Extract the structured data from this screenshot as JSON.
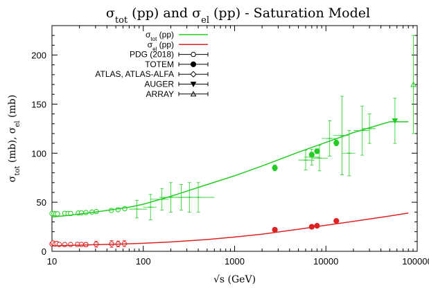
{
  "chart_data": {
    "type": "scatter",
    "title": {
      "parts": [
        {
          "text": "σ",
          "sub": false
        },
        {
          "text": "tot",
          "sub": true
        },
        {
          "text": " (pp) and ",
          "sub": false
        },
        {
          "text": "σ",
          "sub": false
        },
        {
          "text": "el",
          "sub": true
        },
        {
          "text": " (pp) - Saturation Model",
          "sub": false
        }
      ]
    },
    "xlabel": "√s (GeV)",
    "ylabel": {
      "parts": [
        {
          "text": "σ",
          "sub": false
        },
        {
          "text": "tot",
          "sub": true
        },
        {
          "text": " (mb), ",
          "sub": false
        },
        {
          "text": "σ",
          "sub": false
        },
        {
          "text": "el",
          "sub": true
        },
        {
          "text": " (mb)",
          "sub": false
        }
      ]
    },
    "x_scale": "log",
    "xlim": [
      10,
      100000
    ],
    "ylim": [
      0,
      230
    ],
    "x_ticks": [
      10,
      100,
      1000,
      10000,
      100000
    ],
    "x_tick_labels": [
      "10",
      "100",
      "1000",
      "10000",
      "100000"
    ],
    "y_ticks": [
      0,
      50,
      100,
      150,
      200
    ],
    "y_tick_labels": [
      "0",
      "50",
      "100",
      "150",
      "200"
    ],
    "grid": false,
    "legend_position": "top-left",
    "legend": [
      {
        "label_parts": [
          {
            "text": "σ",
            "sub": false
          },
          {
            "text": "tot",
            "sub": true
          },
          {
            "text": " (pp)",
            "sub": false
          }
        ],
        "style": "line",
        "color": "#22cc22"
      },
      {
        "label_parts": [
          {
            "text": "σ",
            "sub": false
          },
          {
            "text": "el",
            "sub": true
          },
          {
            "text": " (pp)",
            "sub": false
          }
        ],
        "style": "line",
        "color": "#dd2222"
      },
      {
        "label_parts": [
          {
            "text": "PDG (2018)",
            "sub": false
          }
        ],
        "style": "open-circle",
        "color": "#000000"
      },
      {
        "label_parts": [
          {
            "text": "TOTEM",
            "sub": false
          }
        ],
        "style": "filled-circle",
        "color": "#000000"
      },
      {
        "label_parts": [
          {
            "text": "ATLAS, ATLAS-ALFA",
            "sub": false
          }
        ],
        "style": "open-diamond",
        "color": "#000000"
      },
      {
        "label_parts": [
          {
            "text": "AUGER",
            "sub": false
          }
        ],
        "style": "down-triangle",
        "color": "#000000"
      },
      {
        "label_parts": [
          {
            "text": "ARRAY",
            "sub": false
          }
        ],
        "style": "up-triangle",
        "color": "#000000"
      }
    ],
    "curves": [
      {
        "color": "#22cc22",
        "x": [
          10,
          15,
          20,
          30,
          50,
          70,
          100,
          200,
          500,
          1000,
          2000,
          5000,
          10000,
          20000,
          50000,
          80000
        ],
        "y": [
          35,
          36.5,
          38,
          40,
          43,
          45,
          48,
          56,
          68,
          77,
          87,
          101,
          111,
          121,
          132,
          132
        ]
      },
      {
        "color": "#dd2222",
        "x": [
          10,
          15,
          20,
          30,
          50,
          100,
          200,
          500,
          1000,
          2000,
          5000,
          10000,
          20000,
          50000,
          80000
        ],
        "y": [
          5.5,
          6,
          6.3,
          6.8,
          7.3,
          8.2,
          9.5,
          12,
          14.5,
          17.5,
          22.5,
          26.5,
          30.5,
          36,
          39
        ]
      }
    ],
    "series": [
      {
        "color": "#22cc22",
        "marker": "open-circle",
        "points": [
          {
            "x": 10,
            "y": 38.5,
            "ey": 1.5
          },
          {
            "x": 10.5,
            "y": 38.5,
            "ey": 1.5
          },
          {
            "x": 11,
            "y": 38.2,
            "ey": 1.5
          },
          {
            "x": 11.5,
            "y": 38.2,
            "ey": 1.5
          },
          {
            "x": 13.8,
            "y": 38.7,
            "ey": 2
          },
          {
            "x": 15,
            "y": 38.5,
            "ey": 1.5
          },
          {
            "x": 16,
            "y": 38.5,
            "ey": 2
          },
          {
            "x": 19.4,
            "y": 39,
            "ey": 1.5
          },
          {
            "x": 21,
            "y": 39.2,
            "ey": 1.5
          },
          {
            "x": 23.5,
            "y": 39.5,
            "ey": 1.5
          },
          {
            "x": 27.4,
            "y": 40,
            "ey": 1.5
          },
          {
            "x": 30.6,
            "y": 40.5,
            "ey": 1.5
          },
          {
            "x": 44.7,
            "y": 41.7,
            "ey": 1.5
          },
          {
            "x": 52.8,
            "y": 42.4,
            "ey": 1.5
          },
          {
            "x": 62.7,
            "y": 43.5,
            "ey": 1.5
          }
        ]
      },
      {
        "color": "#22cc22",
        "marker": "down-triangle",
        "points": [
          {
            "x": 57000,
            "y": 133,
            "ey": 23
          }
        ]
      },
      {
        "color": "#22cc22",
        "marker": "up-triangle",
        "points": [
          {
            "x": 91000,
            "y": 170,
            "ey": 50
          }
        ]
      },
      {
        "color": "#22cc22",
        "marker": "dash",
        "points": [
          {
            "x": 85,
            "y": 43,
            "ey": 9,
            "ex": [
              70,
              110
            ]
          },
          {
            "x": 120,
            "y": 45,
            "ey": 13,
            "ex": [
              100,
              140
            ]
          },
          {
            "x": 160,
            "y": 53,
            "ey": 11,
            "ex": [
              120,
              190
            ]
          },
          {
            "x": 200,
            "y": 55,
            "ey": 15,
            "ex": [
              150,
              250
            ]
          },
          {
            "x": 260,
            "y": 55,
            "ey": 13,
            "ex": [
              200,
              330
            ]
          },
          {
            "x": 320,
            "y": 55,
            "ey": 15,
            "ex": [
              250,
              400
            ]
          },
          {
            "x": 400,
            "y": 55,
            "ey": 15,
            "ex": [
              300,
              600
            ]
          },
          {
            "x": 6000,
            "y": 93,
            "ey": 10,
            "ex": [
              5000,
              7500
            ]
          },
          {
            "x": 7000,
            "y": 96,
            "ey": 8,
            "ex": [
              5800,
              8500
            ]
          },
          {
            "x": 8500,
            "y": 95,
            "ey": 13,
            "ex": [
              7000,
              10500
            ]
          },
          {
            "x": 11000,
            "y": 115,
            "ey": 18,
            "ex": [
              9000,
              13500
            ]
          },
          {
            "x": 15000,
            "y": 118,
            "ey": 40,
            "ex": [
              12000,
              18000
            ]
          },
          {
            "x": 18000,
            "y": 100,
            "ey": 23,
            "ex": [
              15000,
              21000
            ]
          },
          {
            "x": 25000,
            "y": 123,
            "ey": 25,
            "ex": [
              20000,
              30000
            ]
          },
          {
            "x": 30000,
            "y": 125,
            "ey": 15,
            "ex": [
              25000,
              35000
            ]
          }
        ]
      },
      {
        "color": "#22cc22",
        "marker": "filled-circle",
        "points": [
          {
            "x": 2760,
            "y": 85,
            "ey": 3
          },
          {
            "x": 7000,
            "y": 98.5,
            "ey": 2.5
          },
          {
            "x": 8000,
            "y": 102,
            "ey": 2.5
          },
          {
            "x": 13000,
            "y": 110.5,
            "ey": 3
          }
        ]
      },
      {
        "color": "#dd2222",
        "marker": "open-circle",
        "points": [
          {
            "x": 10,
            "y": 7.5,
            "ey": 1.5
          },
          {
            "x": 10.3,
            "y": 8.5,
            "ey": 1.5
          },
          {
            "x": 10.8,
            "y": 7.5,
            "ey": 1.2
          },
          {
            "x": 11.3,
            "y": 8,
            "ey": 1.5
          },
          {
            "x": 12,
            "y": 7,
            "ey": 1
          },
          {
            "x": 13.8,
            "y": 6.9,
            "ey": 1.2
          },
          {
            "x": 16,
            "y": 7,
            "ey": 1.2
          },
          {
            "x": 19,
            "y": 7,
            "ey": 2
          },
          {
            "x": 21,
            "y": 7,
            "ey": 1.2
          },
          {
            "x": 23.5,
            "y": 6.8,
            "ey": 2.2
          },
          {
            "x": 30.5,
            "y": 7.2,
            "ey": 3
          },
          {
            "x": 45,
            "y": 7.5,
            "ey": 3.5
          },
          {
            "x": 53,
            "y": 7.5,
            "ey": 3
          },
          {
            "x": 62,
            "y": 7.8,
            "ey": 3
          }
        ]
      },
      {
        "color": "#dd2222",
        "marker": "filled-circle",
        "points": [
          {
            "x": 2760,
            "y": 22,
            "ey": 1.5
          },
          {
            "x": 7000,
            "y": 25,
            "ey": 2
          },
          {
            "x": 8000,
            "y": 26,
            "ey": 2
          },
          {
            "x": 13000,
            "y": 31,
            "ey": 2
          }
        ]
      }
    ]
  }
}
